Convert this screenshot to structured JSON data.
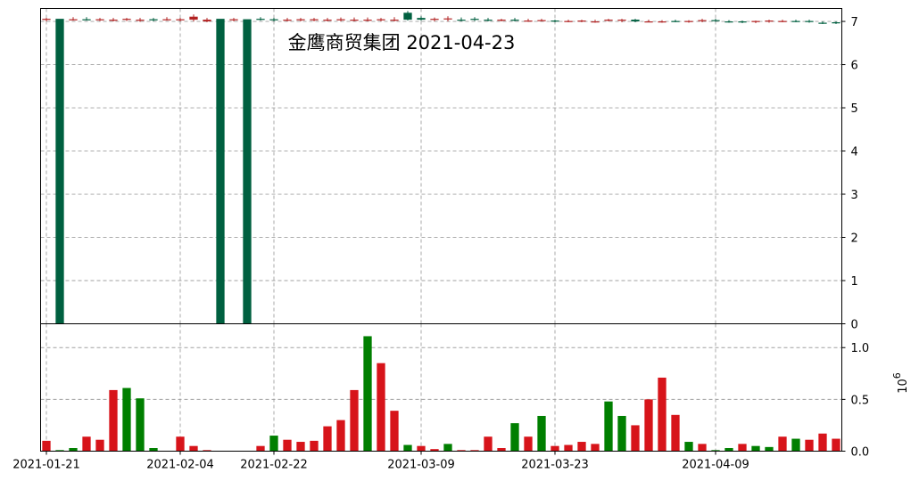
{
  "chart_data": [
    {
      "type": "candlestick",
      "title": "金鹰商贸集团 2021-04-23",
      "ylim": [
        0,
        7.3
      ],
      "yticks": [
        "0",
        "1",
        "2",
        "3",
        "4",
        "5",
        "6",
        "7"
      ],
      "grid": true,
      "up_color": "#B22222",
      "down_color": "#006040",
      "x": [
        "2021-01-21",
        "2021-01-22",
        "2021-01-25",
        "2021-01-26",
        "2021-01-27",
        "2021-01-28",
        "2021-01-29",
        "2021-02-01",
        "2021-02-02",
        "2021-02-03",
        "2021-02-04",
        "2021-02-05",
        "2021-02-08",
        "2021-02-09",
        "2021-02-10",
        "2021-02-18",
        "2021-02-19",
        "2021-02-22",
        "2021-02-23",
        "2021-02-24",
        "2021-02-25",
        "2021-02-26",
        "2021-03-01",
        "2021-03-02",
        "2021-03-03",
        "2021-03-04",
        "2021-03-05",
        "2021-03-08",
        "2021-03-09",
        "2021-03-10",
        "2021-03-11",
        "2021-03-12",
        "2021-03-15",
        "2021-03-16",
        "2021-03-17",
        "2021-03-18",
        "2021-03-19",
        "2021-03-22",
        "2021-03-23",
        "2021-03-24",
        "2021-03-25",
        "2021-03-26",
        "2021-03-29",
        "2021-03-30",
        "2021-03-31",
        "2021-04-01",
        "2021-04-02",
        "2021-04-06",
        "2021-04-07",
        "2021-04-08",
        "2021-04-09",
        "2021-04-12",
        "2021-04-13",
        "2021-04-14",
        "2021-04-15",
        "2021-04-16",
        "2021-04-19",
        "2021-04-20",
        "2021-04-21",
        "2021-04-22"
      ],
      "xticks": [
        "2021-01-21",
        "2021-02-04",
        "2021-02-22",
        "2021-03-09",
        "2021-03-23",
        "2021-04-09"
      ],
      "open": [
        7.04,
        7.06,
        7.05,
        7.05,
        7.04,
        7.03,
        7.04,
        7.02,
        7.05,
        7.04,
        7.03,
        7.04,
        7.0,
        7.06,
        7.04,
        7.05,
        7.06,
        7.05,
        7.03,
        7.04,
        7.04,
        7.04,
        7.04,
        7.03,
        7.03,
        7.03,
        7.04,
        7.2,
        7.08,
        7.04,
        7.05,
        7.04,
        7.06,
        7.04,
        7.03,
        7.04,
        7.02,
        7.03,
        7.02,
        7.0,
        7.02,
        7.0,
        7.03,
        7.02,
        7.04,
        7.0,
        7.0,
        7.01,
        7.0,
        7.01,
        7.03,
        7.0,
        7.0,
        7.0,
        7.01,
        7.0,
        7.01,
        7.01,
        6.97,
        6.98
      ],
      "high": [
        7.08,
        7.1,
        7.1,
        7.1,
        7.08,
        7.08,
        7.08,
        7.08,
        7.08,
        7.1,
        7.08,
        7.16,
        7.08,
        7.1,
        7.08,
        7.09,
        7.1,
        7.08,
        7.08,
        7.08,
        7.08,
        7.08,
        7.09,
        7.09,
        7.09,
        7.08,
        7.1,
        7.24,
        7.12,
        7.09,
        7.12,
        7.09,
        7.1,
        7.08,
        7.06,
        7.08,
        7.06,
        7.06,
        7.04,
        7.04,
        7.04,
        7.04,
        7.06,
        7.06,
        7.06,
        7.04,
        7.03,
        7.04,
        7.03,
        7.06,
        7.06,
        7.03,
        7.02,
        7.02,
        7.04,
        7.04,
        7.04,
        7.04,
        7.0,
        7.0
      ],
      "low": [
        7.0,
        0.0,
        7.02,
        7.02,
        7.01,
        7.0,
        7.01,
        6.99,
        7.0,
        7.02,
        7.0,
        7.0,
        6.98,
        0.0,
        7.0,
        0.0,
        7.02,
        7.0,
        7.0,
        7.0,
        7.0,
        7.0,
        7.0,
        7.0,
        7.0,
        7.0,
        7.0,
        7.02,
        7.02,
        7.0,
        7.0,
        7.0,
        7.01,
        7.0,
        7.0,
        7.0,
        6.99,
        7.0,
        6.98,
        6.98,
        6.98,
        6.97,
        7.0,
        6.98,
        6.98,
        6.98,
        6.97,
        6.98,
        6.97,
        6.98,
        6.99,
        6.97,
        6.96,
        6.96,
        6.97,
        6.98,
        6.98,
        6.97,
        6.94,
        6.94
      ],
      "close": [
        7.06,
        7.05,
        7.05,
        7.04,
        7.05,
        7.04,
        7.06,
        7.04,
        7.03,
        7.05,
        7.05,
        7.11,
        7.04,
        7.04,
        7.05,
        7.05,
        7.05,
        7.04,
        7.04,
        7.05,
        7.05,
        7.04,
        7.05,
        7.04,
        7.04,
        7.05,
        7.04,
        7.04,
        7.04,
        7.06,
        7.07,
        7.03,
        7.05,
        7.03,
        7.04,
        7.03,
        7.02,
        7.03,
        7.01,
        7.01,
        7.02,
        7.0,
        7.04,
        7.04,
        7.0,
        7.0,
        7.0,
        7.0,
        7.01,
        7.03,
        7.01,
        6.98,
        6.99,
        7.01,
        7.02,
        7.01,
        6.99,
        7.0,
        6.96,
        6.97
      ]
    },
    {
      "type": "bar",
      "ylim": [
        0,
        1.23
      ],
      "yticks": [
        "0.0",
        "0.5",
        "1.0"
      ],
      "ylabel_exponent": "6",
      "grid": true,
      "up_color": "#D7141A",
      "down_color": "#007F00",
      "values": [
        0.1,
        0.01,
        0.03,
        0.14,
        0.11,
        0.59,
        0.61,
        0.51,
        0.03,
        0.0,
        0.14,
        0.05,
        0.01,
        0.0,
        0.0,
        0.0,
        0.05,
        0.15,
        0.11,
        0.09,
        0.1,
        0.24,
        0.3,
        0.59,
        1.11,
        0.85,
        0.39,
        0.06,
        0.05,
        0.02,
        0.07,
        0.01,
        0.01,
        0.14,
        0.03,
        0.27,
        0.14,
        0.34,
        0.05,
        0.06,
        0.09,
        0.07,
        0.48,
        0.34,
        0.25,
        0.5,
        0.71,
        0.35,
        0.09,
        0.07,
        0.01,
        0.03,
        0.07,
        0.05,
        0.04,
        0.14,
        0.12,
        0.11,
        0.17,
        0.12
      ],
      "colors": [
        "up",
        "down",
        "down",
        "up",
        "up",
        "up",
        "down",
        "down",
        "down",
        "down",
        "up",
        "up",
        "up",
        "down",
        "down",
        "down",
        "up",
        "down",
        "up",
        "up",
        "up",
        "up",
        "up",
        "up",
        "down",
        "up",
        "up",
        "down",
        "up",
        "up",
        "down",
        "up",
        "up",
        "up",
        "up",
        "down",
        "up",
        "down",
        "up",
        "up",
        "up",
        "up",
        "down",
        "down",
        "up",
        "up",
        "up",
        "up",
        "down",
        "up",
        "down",
        "down",
        "up",
        "down",
        "down",
        "up",
        "down",
        "up",
        "up",
        "up"
      ]
    }
  ]
}
